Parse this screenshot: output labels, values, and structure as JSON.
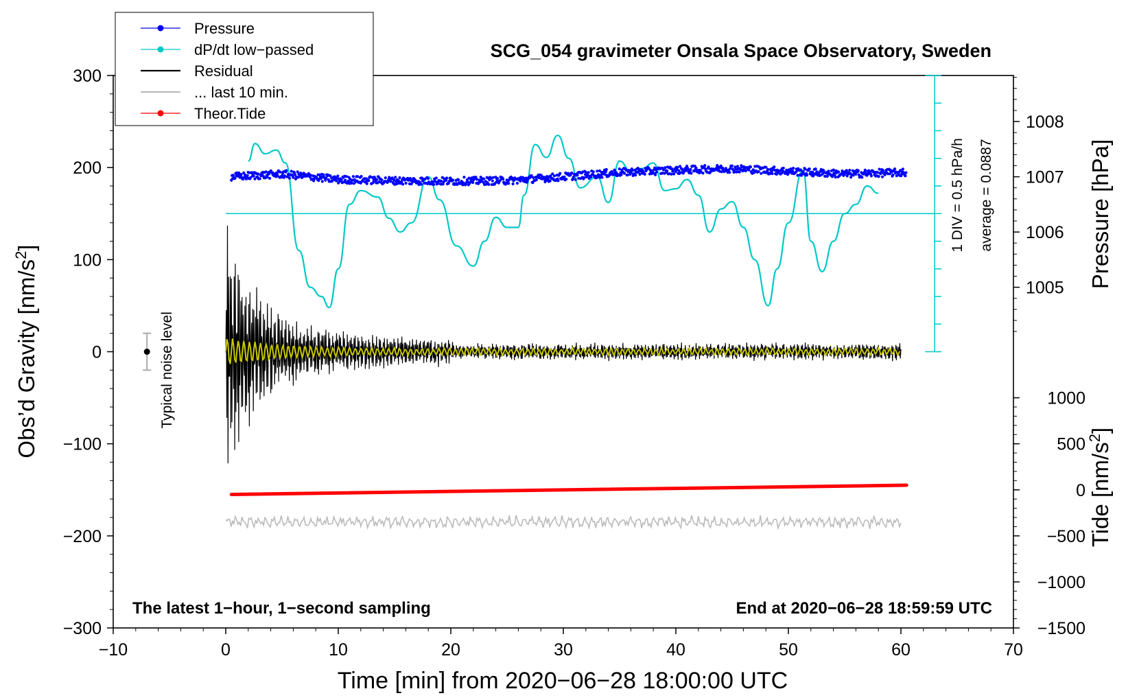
{
  "chart_data": {
    "type": "line",
    "title": "SCG_054 gravimeter Onsala Space Observatory, Sweden",
    "xlabel": "Time [min] from 2020−06−28 18:00:00 UTC",
    "xlim": [
      -10,
      70
    ],
    "x_ticks": [
      -10,
      0,
      10,
      20,
      30,
      40,
      50,
      60,
      70
    ],
    "x_tick_labels": [
      "−10",
      "0",
      "10",
      "20",
      "30",
      "40",
      "50",
      "60",
      "70"
    ],
    "left_axis": {
      "label": "Obs’d Gravity [nm/s",
      "label_sup": "2",
      "label_end": "]",
      "ylim": [
        -300,
        300
      ],
      "ticks": [
        -300,
        -200,
        -100,
        0,
        100,
        200,
        300
      ],
      "tick_labels": [
        "−300",
        "−200",
        "−100",
        "0",
        "100",
        "200",
        "300"
      ]
    },
    "pressure_axis": {
      "label": "Pressure [hPa]",
      "ticks": [
        1005,
        1006,
        1007,
        1008
      ],
      "tick_labels": [
        "1005",
        "1006",
        "1007",
        "1008"
      ],
      "gravity_at_1007": 190,
      "gravity_per_hPa": 60
    },
    "tide_axis": {
      "label": "Tide [nm/s",
      "label_sup": "2",
      "label_end": "]",
      "ticks": [
        1000,
        500,
        0,
        -500,
        -1000,
        -1500
      ],
      "tick_labels": [
        "1000",
        "500",
        "0",
        "−500",
        "−1000",
        "−1500"
      ],
      "gravity_at_0": -150,
      "gravity_per_unit": 0.1
    },
    "dpdt_scale": {
      "line1": "1 DIV = 0.5 hPa/h",
      "line2": "average = 0.0887",
      "average_gravity_level": 150,
      "x_min": 63,
      "range": [
        0,
        300
      ],
      "division_step": 30
    },
    "legend": {
      "placement": "top-left",
      "entries": [
        {
          "label": "Pressure",
          "color": "#0000ff",
          "marker": true
        },
        {
          "label": "dP/dt low−passed",
          "color": "#00c8c8",
          "marker": true
        },
        {
          "label": "Residual",
          "color": "#000000",
          "marker": false
        },
        {
          "label": "... last 10 min.",
          "color": "#bbbbbb",
          "marker": false
        },
        {
          "label": "Theor.Tide",
          "color": "#ff0000",
          "marker": true
        }
      ]
    },
    "noise_bar": {
      "label": "Typical noise level",
      "x": -7,
      "y": 0,
      "low": -20,
      "high": 20
    },
    "series": [
      {
        "name": "Pressure",
        "color": "#0000ff",
        "x": [
          0.5,
          5,
          10,
          15,
          20,
          25,
          30,
          35,
          40,
          45,
          50,
          55,
          60.5
        ],
        "y_hPa": [
          1007.0,
          1007.05,
          1006.95,
          1006.93,
          1006.92,
          1006.93,
          1007.0,
          1007.08,
          1007.12,
          1007.15,
          1007.1,
          1007.05,
          1007.08
        ]
      },
      {
        "name": "dP/dt low-passed",
        "color": "#00c8c8",
        "x": [
          2,
          2.6,
          3.5,
          4.5,
          5.3,
          6.5,
          7.5,
          8.5,
          9.2,
          10,
          11,
          12,
          13.5,
          14.5,
          15.5,
          16.5,
          18,
          19,
          20.5,
          22,
          23,
          24,
          25,
          26,
          26.5,
          27.5,
          28.5,
          29.5,
          30.5,
          31.5,
          33,
          34,
          35,
          36,
          37,
          38,
          39,
          40,
          41,
          42,
          43,
          44,
          45,
          46,
          47,
          48.2,
          49,
          50,
          51.3,
          52,
          53,
          54,
          55,
          56,
          57,
          58
        ],
        "y": [
          207,
          226,
          215,
          219,
          205,
          110,
          70,
          60,
          48,
          90,
          160,
          175,
          168,
          145,
          130,
          140,
          190,
          165,
          115,
          93,
          120,
          146,
          135,
          135,
          170,
          225,
          211,
          235,
          210,
          178,
          190,
          162,
          207,
          196,
          199,
          205,
          175,
          177,
          187,
          170,
          130,
          155,
          163,
          135,
          100,
          50,
          90,
          140,
          197,
          120,
          87,
          120,
          150,
          160,
          180,
          172
        ]
      },
      {
        "name": "Residual",
        "color": "#000000",
        "description": "decaying oscillation, peak ~120 at x=0.4, settling to about ±10 after 20 min",
        "x_range": [
          0,
          60
        ]
      },
      {
        "name": "Residual low-passed",
        "color": "#c8c800",
        "description": "yellow smoothed residual, ~±10 early, ~0 later",
        "x_range": [
          0,
          60
        ]
      },
      {
        "name": "... last 10 min.",
        "color": "#bbbbbb",
        "description": "grey trace around gravity -185",
        "x_range": [
          0,
          60
        ]
      },
      {
        "name": "Theor.Tide",
        "color": "#ff0000",
        "x": [
          0.5,
          60.5
        ],
        "y_tide": [
          -50,
          50
        ]
      }
    ],
    "footer_left": "The latest 1−hour, 1−second sampling",
    "footer_right": "End at 2020−06−28 18:59:59 UTC"
  }
}
